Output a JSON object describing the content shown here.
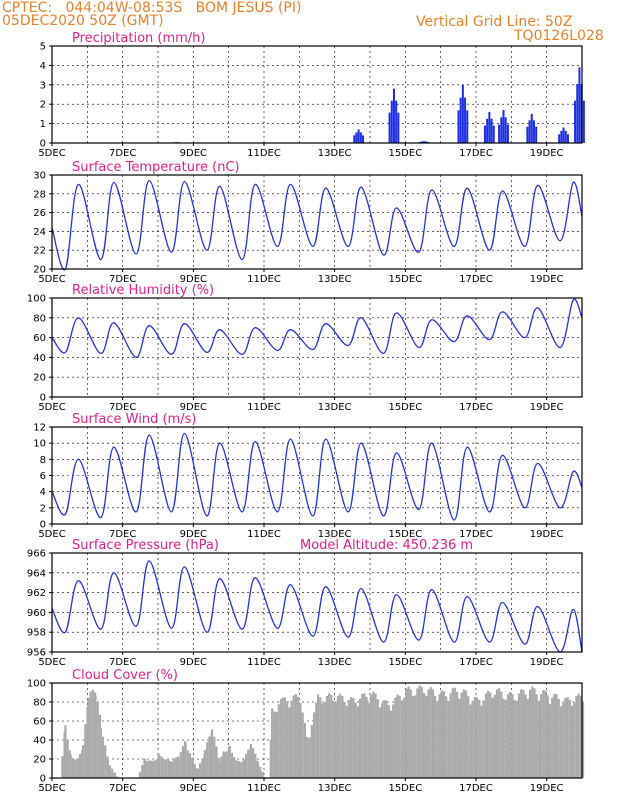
{
  "header": {
    "station": "CPTEC:   044:04W-08:53S   BOM JESUS (PI)",
    "run": "05DEC2020 50Z (GMT)",
    "grid_line": "Vertical Grid Line: 50Z",
    "code": "TQ0126L028"
  },
  "x_labels": [
    "5DEC",
    "7DEC",
    "9DEC",
    "11DEC",
    "13DEC",
    "15DEC",
    "17DEC",
    "19DEC"
  ],
  "colors": {
    "header": "#e8822a",
    "title": "#e0218a",
    "line": "#2233dd",
    "bar": "#1a2ee6",
    "cloud": "#aaaaaa",
    "arrow": "#000000"
  },
  "chart_data": [
    {
      "id": "precip",
      "type": "bar",
      "title": "Precipitation (mm/h)",
      "ylim": [
        0,
        5
      ],
      "yticks": [
        0,
        1,
        2,
        3,
        4,
        5
      ],
      "events": [
        {
          "day": 8.5,
          "value": 0.05
        },
        {
          "day": 13.65,
          "value": 0.7
        },
        {
          "day": 14.65,
          "value": 2.8
        },
        {
          "day": 15.5,
          "value": 0.1
        },
        {
          "day": 16.6,
          "value": 3.0
        },
        {
          "day": 17.35,
          "value": 1.6
        },
        {
          "day": 17.75,
          "value": 1.7
        },
        {
          "day": 18.55,
          "value": 1.5
        },
        {
          "day": 19.45,
          "value": 0.8
        },
        {
          "day": 19.9,
          "value": 3.9
        }
      ]
    },
    {
      "id": "temp",
      "type": "line",
      "title": "Surface Temperature (nC)",
      "ylim": [
        20,
        30
      ],
      "yticks": [
        20,
        22,
        24,
        26,
        28,
        30
      ],
      "daily_max": [
        29.0,
        29.2,
        29.4,
        29.3,
        28.8,
        29.0,
        29.0,
        28.6,
        28.7,
        26.5,
        28.4,
        28.6,
        28.3,
        28.9,
        29.2
      ],
      "daily_min": [
        20.0,
        21.0,
        21.6,
        21.8,
        22.0,
        21.0,
        22.4,
        22.4,
        22.4,
        21.5,
        21.8,
        22.4,
        22.0,
        22.4,
        23.0
      ],
      "start": 24.4,
      "end": 25.6
    },
    {
      "id": "rh",
      "type": "line",
      "title": "Relative Humidity (%)",
      "ylim": [
        0,
        100
      ],
      "yticks": [
        0,
        20,
        40,
        60,
        80,
        100
      ],
      "daily_max": [
        80,
        75,
        72,
        74,
        68,
        70,
        68,
        74,
        80,
        85,
        78,
        82,
        86,
        90,
        98
      ],
      "daily_min": [
        45,
        44,
        40,
        43,
        45,
        43,
        47,
        48,
        52,
        44,
        50,
        56,
        58,
        60,
        50
      ],
      "start": 60,
      "end": 80
    },
    {
      "id": "wind",
      "type": "line",
      "title": "Surface Wind (m/s)",
      "ylim": [
        0,
        12
      ],
      "yticks": [
        0,
        2,
        4,
        6,
        8,
        10,
        12
      ],
      "daily_max": [
        8.0,
        9.5,
        11.0,
        11.2,
        10.0,
        10.2,
        10.5,
        10.5,
        10.0,
        8.8,
        10.0,
        9.5,
        8.5,
        7.5,
        6.5
      ],
      "daily_min": [
        1.2,
        0.8,
        1.5,
        1.5,
        1.0,
        1.5,
        1.5,
        1.0,
        1.5,
        1.0,
        1.8,
        0.5,
        1.5,
        2.0,
        2.0
      ],
      "start": 4.0,
      "end": 4.5
    },
    {
      "id": "pres",
      "type": "line",
      "title": "Surface Pressure (hPa)",
      "annotation": "Model Altitude: 450.236 m",
      "ylim": [
        956,
        966
      ],
      "yticks": [
        956,
        958,
        960,
        962,
        964,
        966
      ],
      "daily_max": [
        963.2,
        964.0,
        965.2,
        964.6,
        963.4,
        963.5,
        962.8,
        962.6,
        962.4,
        961.8,
        962.3,
        961.6,
        961.0,
        960.6,
        960.3
      ],
      "daily_min": [
        958.0,
        958.3,
        958.6,
        958.4,
        958.0,
        958.3,
        958.4,
        957.6,
        957.5,
        957.0,
        957.2,
        957.0,
        957.0,
        956.8,
        956.0
      ],
      "start": 960.4,
      "end": 956.0
    },
    {
      "id": "cloud",
      "type": "area",
      "title": "Cloud Cover (%)",
      "ylim": [
        0,
        100
      ],
      "yticks": [
        0,
        20,
        40,
        60,
        80,
        100
      ],
      "x": [
        5.0,
        5.2,
        5.35,
        5.5,
        5.7,
        5.85,
        6.0,
        6.2,
        6.35,
        6.55,
        6.75,
        6.85,
        7.0,
        7.4,
        7.6,
        7.8,
        8.0,
        8.2,
        8.35,
        8.55,
        8.75,
        8.95,
        9.1,
        9.3,
        9.5,
        9.7,
        9.85,
        10.0,
        10.2,
        10.4,
        10.6,
        10.8,
        11.0,
        11.1,
        11.2,
        11.5,
        12.0,
        12.2,
        12.5,
        13.0,
        13.5,
        14.0,
        14.5,
        15.0,
        15.5,
        16.0,
        16.5,
        17.0,
        17.5,
        18.0,
        18.5,
        19.0,
        19.5,
        20.0
      ],
      "y": [
        0,
        0,
        60,
        25,
        20,
        35,
        88,
        98,
        60,
        20,
        5,
        0,
        0,
        0,
        22,
        18,
        25,
        20,
        18,
        24,
        40,
        20,
        10,
        30,
        55,
        20,
        30,
        35,
        18,
        20,
        38,
        18,
        0,
        0,
        75,
        85,
        90,
        40,
        88,
        90,
        85,
        93,
        80,
        96,
        98,
        92,
        97,
        85,
        96,
        90,
        97,
        92,
        85,
        90
      ]
    }
  ]
}
